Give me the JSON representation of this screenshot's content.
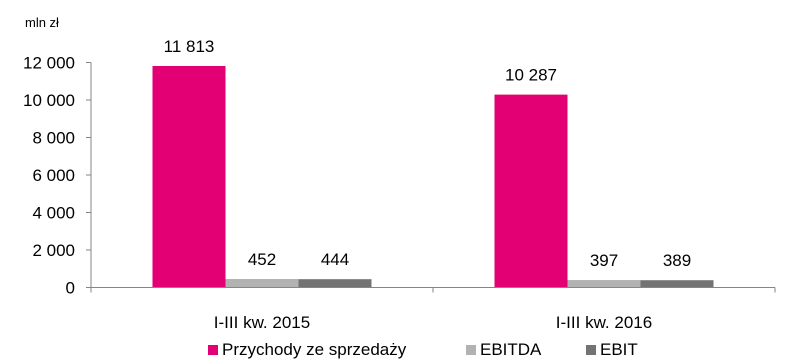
{
  "chart_data": {
    "type": "bar",
    "unit_label": "mln zł",
    "categories": [
      "I-III kw. 2015",
      "I-III kw. 2016"
    ],
    "series": [
      {
        "name": "Przychody ze sprzedaży",
        "values": [
          11813,
          10287
        ],
        "labels": [
          "11 813",
          "10 287"
        ],
        "color": "#E20074"
      },
      {
        "name": "EBITDA",
        "values": [
          452,
          397
        ],
        "labels": [
          "452",
          "397"
        ],
        "color": "#B2B2B2"
      },
      {
        "name": "EBIT",
        "values": [
          444,
          389
        ],
        "labels": [
          "444",
          "389"
        ],
        "color": "#737373"
      }
    ],
    "ylim": [
      0,
      12000
    ],
    "yticks": [
      0,
      2000,
      4000,
      6000,
      8000,
      10000,
      12000
    ],
    "ytick_labels": [
      "0",
      "2 000",
      "4 000",
      "6 000",
      "8 000",
      "10 000",
      "12 000"
    ],
    "grid": false,
    "legend_position": "bottom"
  }
}
